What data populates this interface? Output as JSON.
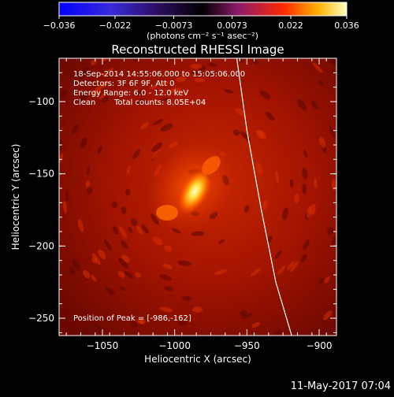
{
  "chart_data": {
    "type": "heatmap",
    "title": "Reconstructed RHESSI Image",
    "xlabel": "Heliocentric X (arcsec)",
    "ylabel": "Heliocentric Y (arcsec)",
    "xlim": [
      -1080,
      -888
    ],
    "ylim": [
      -262,
      -70
    ],
    "xticks": [
      -1050,
      -1000,
      -950,
      -900
    ],
    "xtick_labels": [
      "−1050",
      "−1000",
      "−950",
      "−900"
    ],
    "yticks": [
      -100,
      -150,
      -200,
      -250
    ],
    "ytick_labels": [
      "−100",
      "−150",
      "−200",
      "−250"
    ],
    "colorbar": {
      "min": -0.036,
      "max": 0.036,
      "ticks": [
        -0.036,
        -0.022,
        -0.0073,
        0.0073,
        0.022,
        0.036
      ],
      "tick_labels": [
        "−0.036",
        "−0.022",
        "−0.0073",
        "0.0073",
        "0.022",
        "0.036"
      ],
      "unit_label": "(photons cm⁻² s⁻¹ asec⁻²)",
      "colormap": "hot-with-blue-negative"
    },
    "annotations": {
      "time_range": "18-Sep-2014 14:55:06.000 to 15:05:06.000",
      "detectors": "Detectors: 3F 6F 9F, Att 0",
      "energy_range": "Energy Range: 6.0 - 12.0 keV",
      "method": "Clean",
      "total_counts": "Total counts: 8.05E+04",
      "peak": "Position of Peak = [-986,-162]"
    },
    "peak": {
      "x": -986,
      "y": -162
    },
    "limb_curve": {
      "x": [
        -957,
        -950,
        -940,
        -930,
        -919
      ],
      "y": [
        -70,
        -120,
        -175,
        -225,
        -262
      ]
    }
  },
  "footer": {
    "date_stamp": "11-May-2017 07:04"
  },
  "colors": {
    "limb": "#ffffff",
    "background": "#000000",
    "peak": "#ffffd0"
  }
}
